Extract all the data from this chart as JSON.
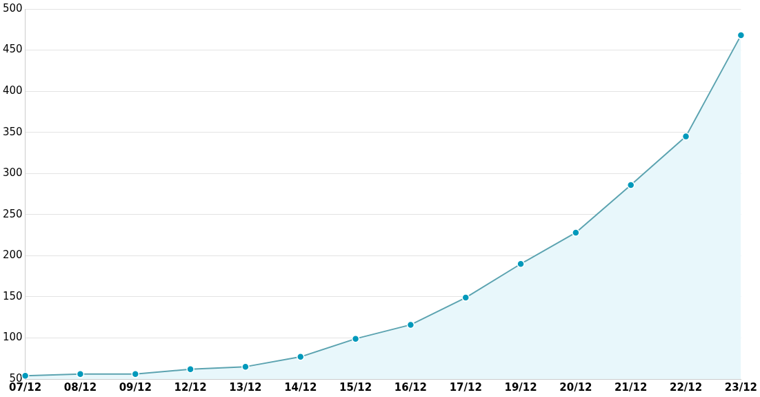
{
  "chart_data": {
    "type": "area",
    "categories": [
      "07/12",
      "08/12",
      "09/12",
      "12/12",
      "13/12",
      "14/12",
      "15/12",
      "16/12",
      "17/12",
      "19/12",
      "20/12",
      "21/12",
      "22/12",
      "23/12"
    ],
    "series": [
      {
        "color": "#5ba3b0",
        "values": [
          54,
          56,
          56,
          62,
          65,
          77,
          99,
          116,
          149,
          190,
          228,
          286,
          345,
          468
        ]
      }
    ],
    "ylim": [
      50,
      500
    ],
    "yticks": [
      50,
      100,
      150,
      200,
      250,
      300,
      350,
      400,
      450,
      500
    ],
    "grid": "y",
    "legend": false,
    "marker": "circle",
    "line_style": "solid"
  }
}
